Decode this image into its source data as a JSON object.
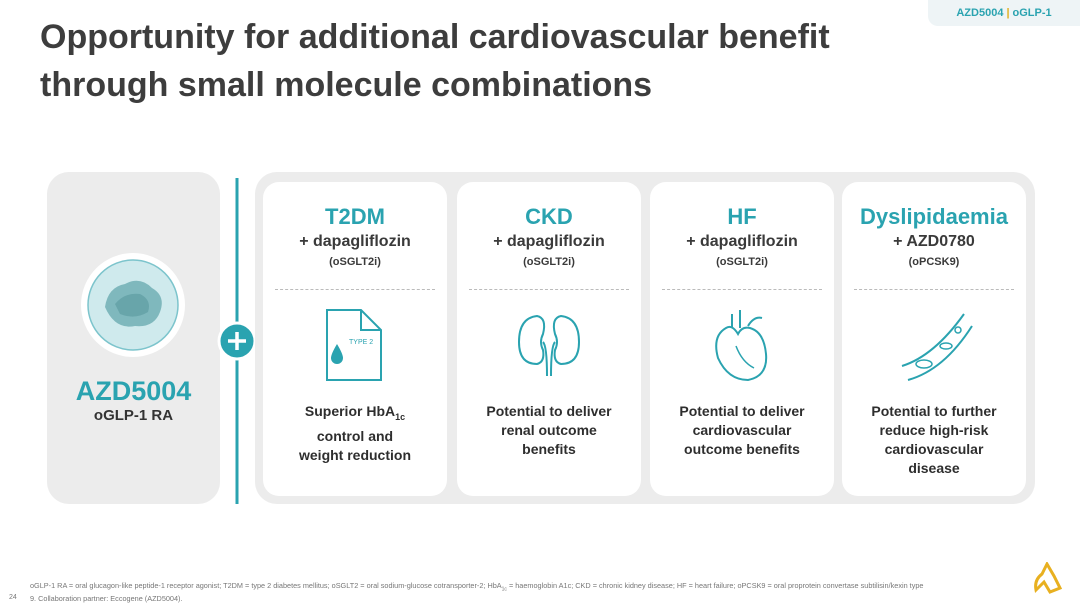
{
  "tag": {
    "product": "AZD5004",
    "separator": "|",
    "class": "oGLP-1"
  },
  "title": {
    "lines": [
      "Opportunity for additional cardiovascular benefit",
      "through small molecule combinations"
    ]
  },
  "candidate": {
    "name": "AZD5004",
    "subtitle": "oGLP-1 RA"
  },
  "cards": [
    {
      "heading": "T2DM",
      "combo": "+ dapagliflozin",
      "class": "(oSGLT2i)",
      "icon_label": "TYPE 2",
      "description": [
        {
          "text": "Superior HbA",
          "sub": "1c"
        },
        "control and",
        "weight reduction"
      ]
    },
    {
      "heading": "CKD",
      "combo": "+ dapagliflozin",
      "class": "(oSGLT2i)",
      "description": [
        "Potential to deliver",
        "renal outcome",
        "benefits"
      ]
    },
    {
      "heading": "HF",
      "combo": "+ dapagliflozin",
      "class": "(oSGLT2i)",
      "description": [
        "Potential to deliver",
        "cardiovascular",
        "outcome benefits"
      ]
    },
    {
      "heading": "Dyslipidaemia",
      "combo": "+ AZD0780",
      "class": "(oPCSK9)",
      "description": [
        "Potential to further",
        "reduce high-risk",
        "cardiovascular",
        "disease"
      ]
    }
  ],
  "footnote": {
    "page": "24",
    "before": "oGLP-1 RA = oral glucagon-like peptide-1 receptor agonist; T2DM = type 2 diabetes mellitus; oSGLT2 = oral sodium-glucose cotransporter-2; HbA",
    "sub": "1c",
    "after": " = haemoglobin A1c; CKD = chronic kidney disease; HF = heart failure; oPCSK9 = oral proprotein convertase subtilisin/kexin type 9. Collaboration partner: Eccogene (AZD5004)."
  }
}
